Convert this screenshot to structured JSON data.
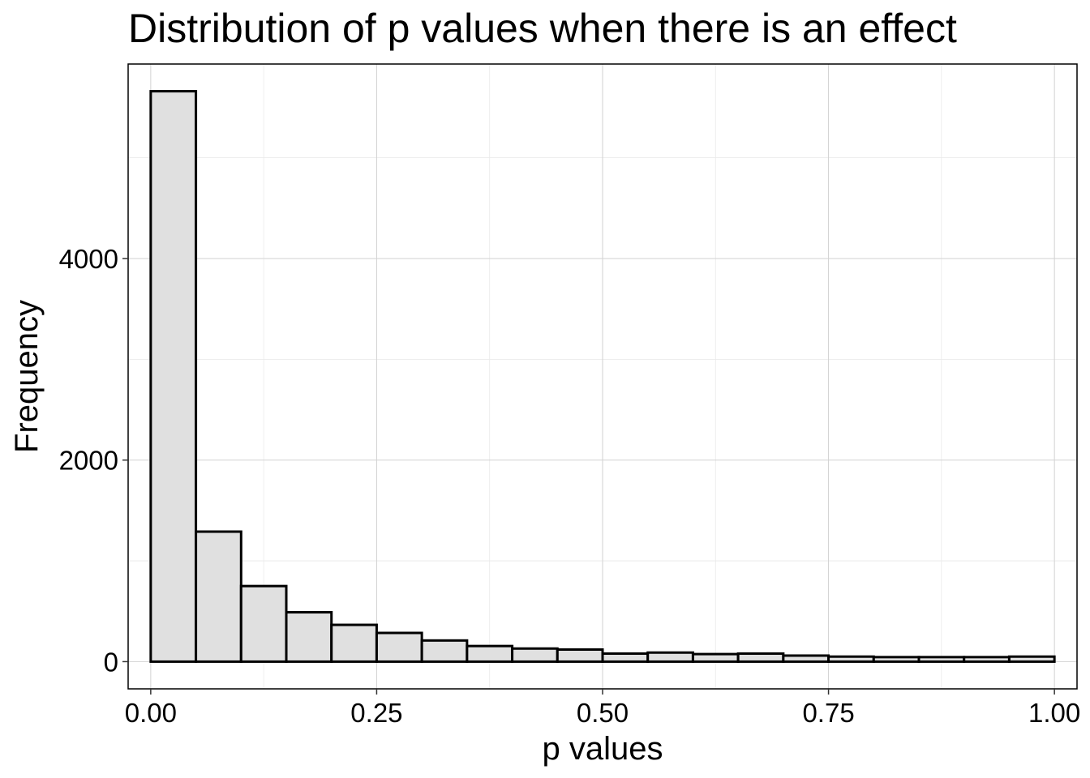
{
  "chart_data": {
    "type": "bar",
    "title": "Distribution of p values when there is an effect",
    "xlabel": "p values",
    "ylabel": "Frequency",
    "xlim": [
      -0.025,
      1.025
    ],
    "ylim": [
      -270,
      5930
    ],
    "x_ticks": [
      0,
      0.25,
      0.5,
      0.75,
      1
    ],
    "x_tick_labels": [
      "0.00",
      "0.25",
      "0.50",
      "0.75",
      "1.00"
    ],
    "y_ticks": [
      0,
      2000,
      4000
    ],
    "y_tick_labels": [
      "0",
      "2000",
      "4000"
    ],
    "bin_width": 0.05,
    "bins": [
      {
        "x0": 0.0,
        "x1": 0.05,
        "value": 5660
      },
      {
        "x0": 0.05,
        "x1": 0.1,
        "value": 1290
      },
      {
        "x0": 0.1,
        "x1": 0.15,
        "value": 750
      },
      {
        "x0": 0.15,
        "x1": 0.2,
        "value": 490
      },
      {
        "x0": 0.2,
        "x1": 0.25,
        "value": 365
      },
      {
        "x0": 0.25,
        "x1": 0.3,
        "value": 285
      },
      {
        "x0": 0.3,
        "x1": 0.35,
        "value": 210
      },
      {
        "x0": 0.35,
        "x1": 0.4,
        "value": 155
      },
      {
        "x0": 0.4,
        "x1": 0.45,
        "value": 130
      },
      {
        "x0": 0.45,
        "x1": 0.5,
        "value": 120
      },
      {
        "x0": 0.5,
        "x1": 0.55,
        "value": 80
      },
      {
        "x0": 0.55,
        "x1": 0.6,
        "value": 90
      },
      {
        "x0": 0.6,
        "x1": 0.65,
        "value": 75
      },
      {
        "x0": 0.65,
        "x1": 0.7,
        "value": 80
      },
      {
        "x0": 0.7,
        "x1": 0.75,
        "value": 60
      },
      {
        "x0": 0.75,
        "x1": 0.8,
        "value": 50
      },
      {
        "x0": 0.8,
        "x1": 0.85,
        "value": 45
      },
      {
        "x0": 0.85,
        "x1": 0.9,
        "value": 45
      },
      {
        "x0": 0.9,
        "x1": 0.95,
        "value": 45
      },
      {
        "x0": 0.95,
        "x1": 1.0,
        "value": 50
      }
    ],
    "grid": true,
    "bar_fill": "#e0e0e0",
    "bar_outline": "#000000"
  }
}
